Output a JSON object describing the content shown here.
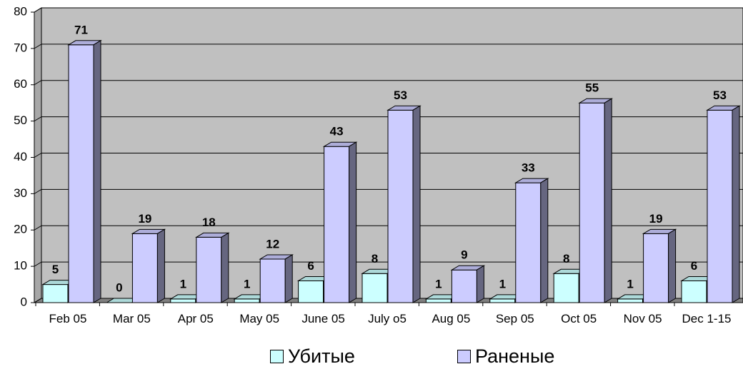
{
  "chart_data": {
    "type": "bar3d",
    "categories": [
      "Feb 05",
      "Mar 05",
      "Apr 05",
      "May 05",
      "June 05",
      "July o5",
      "Aug 05",
      "Sep 05",
      "Oct 05",
      "Nov 05",
      "Dec 1-15"
    ],
    "series": [
      {
        "name": "Убитые",
        "color": "#ccffff",
        "values": [
          5,
          0,
          1,
          1,
          6,
          8,
          1,
          1,
          8,
          1,
          6
        ]
      },
      {
        "name": "Раненые",
        "color": "#ccccff",
        "values": [
          71,
          19,
          18,
          12,
          43,
          53,
          9,
          33,
          55,
          19,
          53
        ]
      }
    ],
    "ylim": [
      0,
      80
    ],
    "yticks": [
      0,
      10,
      20,
      30,
      40,
      50,
      60,
      70,
      80
    ],
    "grid": true,
    "legend": "bottom"
  }
}
